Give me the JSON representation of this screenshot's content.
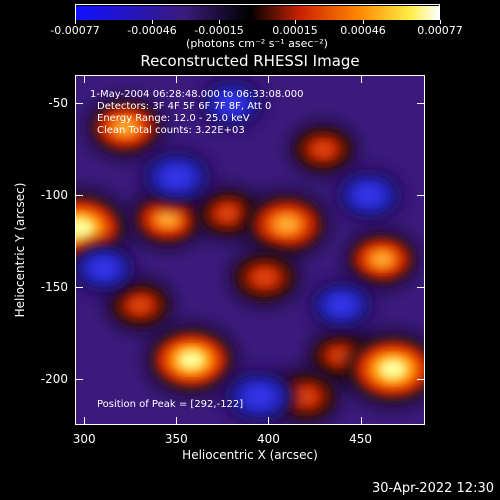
{
  "colorbar": {
    "tick_labels": [
      "-0.00077",
      "-0.00046",
      "-0.00015",
      "0.00015",
      "0.00046",
      "0.00077"
    ],
    "units": "(photons cm⁻² s⁻¹ asec⁻²)"
  },
  "plot": {
    "title": "Reconstructed RHESSI Image",
    "info": {
      "time": "1-May-2004 06:28:48.000 to 06:33:08.000",
      "detectors": "Detectors: 3F 4F 5F 6F 7F 8F, Att 0",
      "energy": "Energy Range: 12.0 - 25.0 keV",
      "clean": "Clean    Total counts: 3.22E+03",
      "peak": "Position of Peak = [292,-122]"
    },
    "xlabel": "Heliocentric X (arcsec)",
    "ylabel": "Heliocentric Y (arcsec)",
    "xticks": [
      "300",
      "350",
      "400",
      "450"
    ],
    "yticks": [
      "-50",
      "-100",
      "-150",
      "-200"
    ]
  },
  "chart_data": {
    "type": "heatmap",
    "title": "Reconstructed RHESSI Image",
    "xlabel": "Heliocentric X (arcsec)",
    "ylabel": "Heliocentric Y (arcsec)",
    "xlim": [
      295,
      485
    ],
    "ylim": [
      -225,
      -35
    ],
    "color_range": [
      -0.00077,
      0.00077
    ],
    "colormap": [
      "#1a1aff",
      "#3a1a7a",
      "#000000",
      "#cc2200",
      "#ff8800",
      "#ffff66",
      "#ffffff"
    ],
    "peak": [
      292,
      -122
    ],
    "blobs": [
      {
        "x": 297,
        "y": -118,
        "v": 0.00075
      },
      {
        "x": 345,
        "y": -113,
        "v": 0.0004
      },
      {
        "x": 378,
        "y": -110,
        "v": 0.0003
      },
      {
        "x": 410,
        "y": -116,
        "v": 0.00055
      },
      {
        "x": 462,
        "y": -135,
        "v": 0.0004
      },
      {
        "x": 358,
        "y": -190,
        "v": 0.00065
      },
      {
        "x": 440,
        "y": -188,
        "v": 0.0003
      },
      {
        "x": 468,
        "y": -195,
        "v": 0.00072
      },
      {
        "x": 322,
        "y": -63,
        "v": 0.00045
      },
      {
        "x": 398,
        "y": -145,
        "v": 0.00035
      },
      {
        "x": 430,
        "y": -75,
        "v": 0.0003
      },
      {
        "x": 330,
        "y": -160,
        "v": 0.0003
      },
      {
        "x": 420,
        "y": -210,
        "v": 0.00035
      },
      {
        "x": 350,
        "y": -90,
        "v": -0.0004
      },
      {
        "x": 395,
        "y": -210,
        "v": -0.0004
      },
      {
        "x": 455,
        "y": -100,
        "v": -0.00035
      },
      {
        "x": 310,
        "y": -140,
        "v": -0.0003
      },
      {
        "x": 440,
        "y": -160,
        "v": -0.0003
      },
      {
        "x": 380,
        "y": -50,
        "v": -0.0003
      }
    ]
  },
  "footer": {
    "timestamp": "30-Apr-2022 12:30"
  }
}
